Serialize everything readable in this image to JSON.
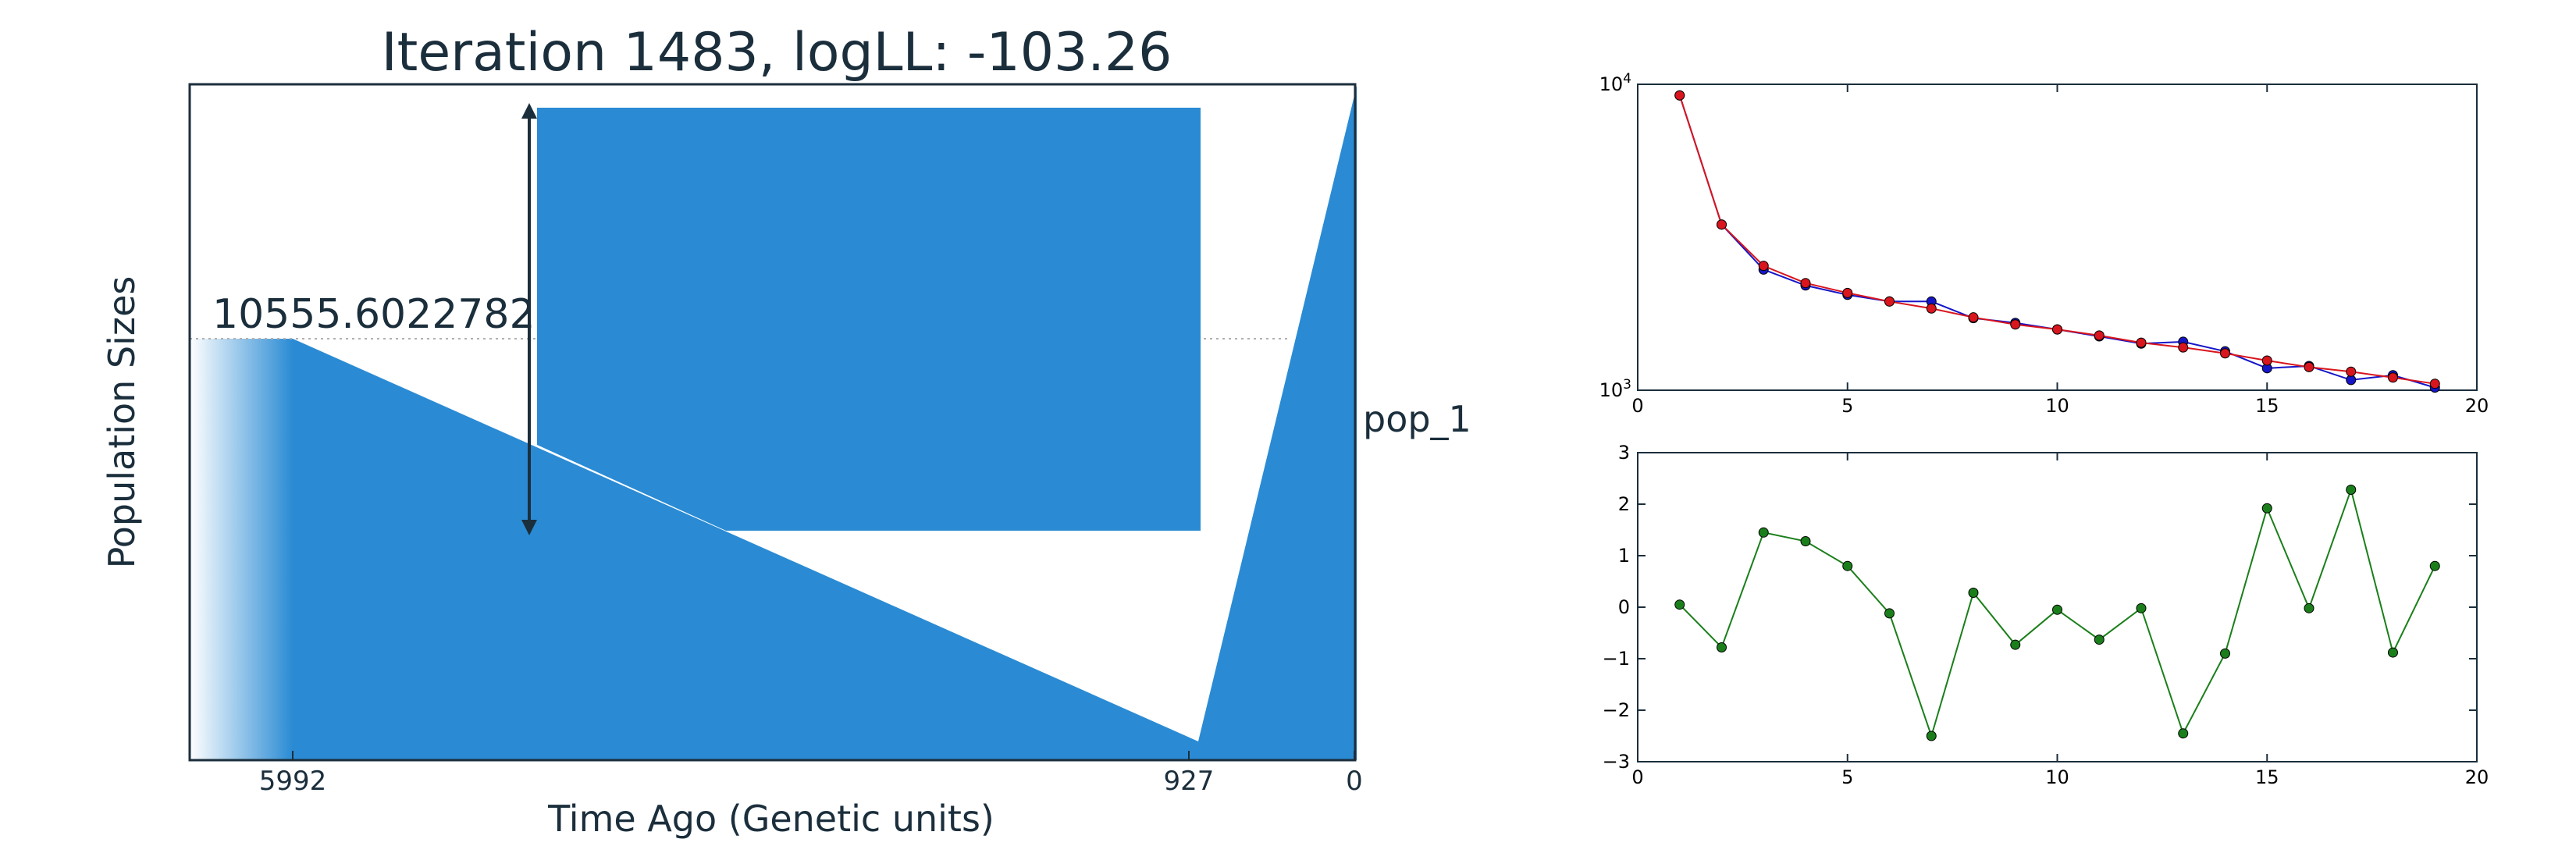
{
  "colors": {
    "background": "#ffffff",
    "text": "#1b2e3c",
    "demography_fill": "#2a8bd4",
    "series_red": "#d9151d",
    "series_blue": "#1515c8",
    "series_green": "#1a7f1a",
    "reference_dotted": "#b0b0b0"
  },
  "chart_data": [
    {
      "type": "area",
      "title": "Iteration 1483, logLL:    -103.26",
      "xlabel": "Time Ago (Genetic units)",
      "ylabel": "Population Sizes",
      "x_tick_labels": [
        "5992",
        "927",
        "0"
      ],
      "annotation": "10555.6022782",
      "population_label": "pop_1"
    },
    {
      "type": "line",
      "y_scale": "log",
      "xlim": [
        0,
        20
      ],
      "ylim": [
        1000,
        10000
      ],
      "x_ticks": [
        "0",
        "5",
        "10",
        "15",
        "20"
      ],
      "y_ticks": [
        "10^3",
        "10^4"
      ],
      "x": [
        1,
        2,
        3,
        4,
        5,
        6,
        7,
        8,
        9,
        10,
        11,
        12,
        13,
        14,
        15,
        16,
        17,
        18,
        19
      ],
      "series": [
        {
          "color": "blue",
          "values": [
            9200,
            3480,
            2480,
            2200,
            2050,
            1950,
            1950,
            1720,
            1660,
            1580,
            1500,
            1420,
            1440,
            1340,
            1180,
            1200,
            1080,
            1120,
            1020
          ]
        },
        {
          "color": "red",
          "values": [
            9200,
            3480,
            2550,
            2240,
            2080,
            1950,
            1850,
            1730,
            1640,
            1580,
            1510,
            1430,
            1380,
            1320,
            1250,
            1190,
            1150,
            1100,
            1050
          ]
        }
      ]
    },
    {
      "type": "line",
      "xlim": [
        0,
        20
      ],
      "ylim": [
        -3,
        3
      ],
      "x_ticks": [
        "0",
        "5",
        "10",
        "15",
        "20"
      ],
      "y_ticks": [
        "−3",
        "−2",
        "−1",
        "0",
        "1",
        "2",
        "3"
      ],
      "x": [
        1,
        2,
        3,
        4,
        5,
        6,
        7,
        8,
        9,
        10,
        11,
        12,
        13,
        14,
        15,
        16,
        17,
        18,
        19
      ],
      "series": [
        {
          "color": "green",
          "values": [
            0.05,
            -0.78,
            1.45,
            1.28,
            0.8,
            -0.12,
            -2.5,
            0.28,
            -0.73,
            -0.05,
            -0.63,
            -0.02,
            -2.45,
            -0.9,
            1.92,
            -0.02,
            2.28,
            -0.88,
            0.8
          ]
        }
      ]
    }
  ]
}
